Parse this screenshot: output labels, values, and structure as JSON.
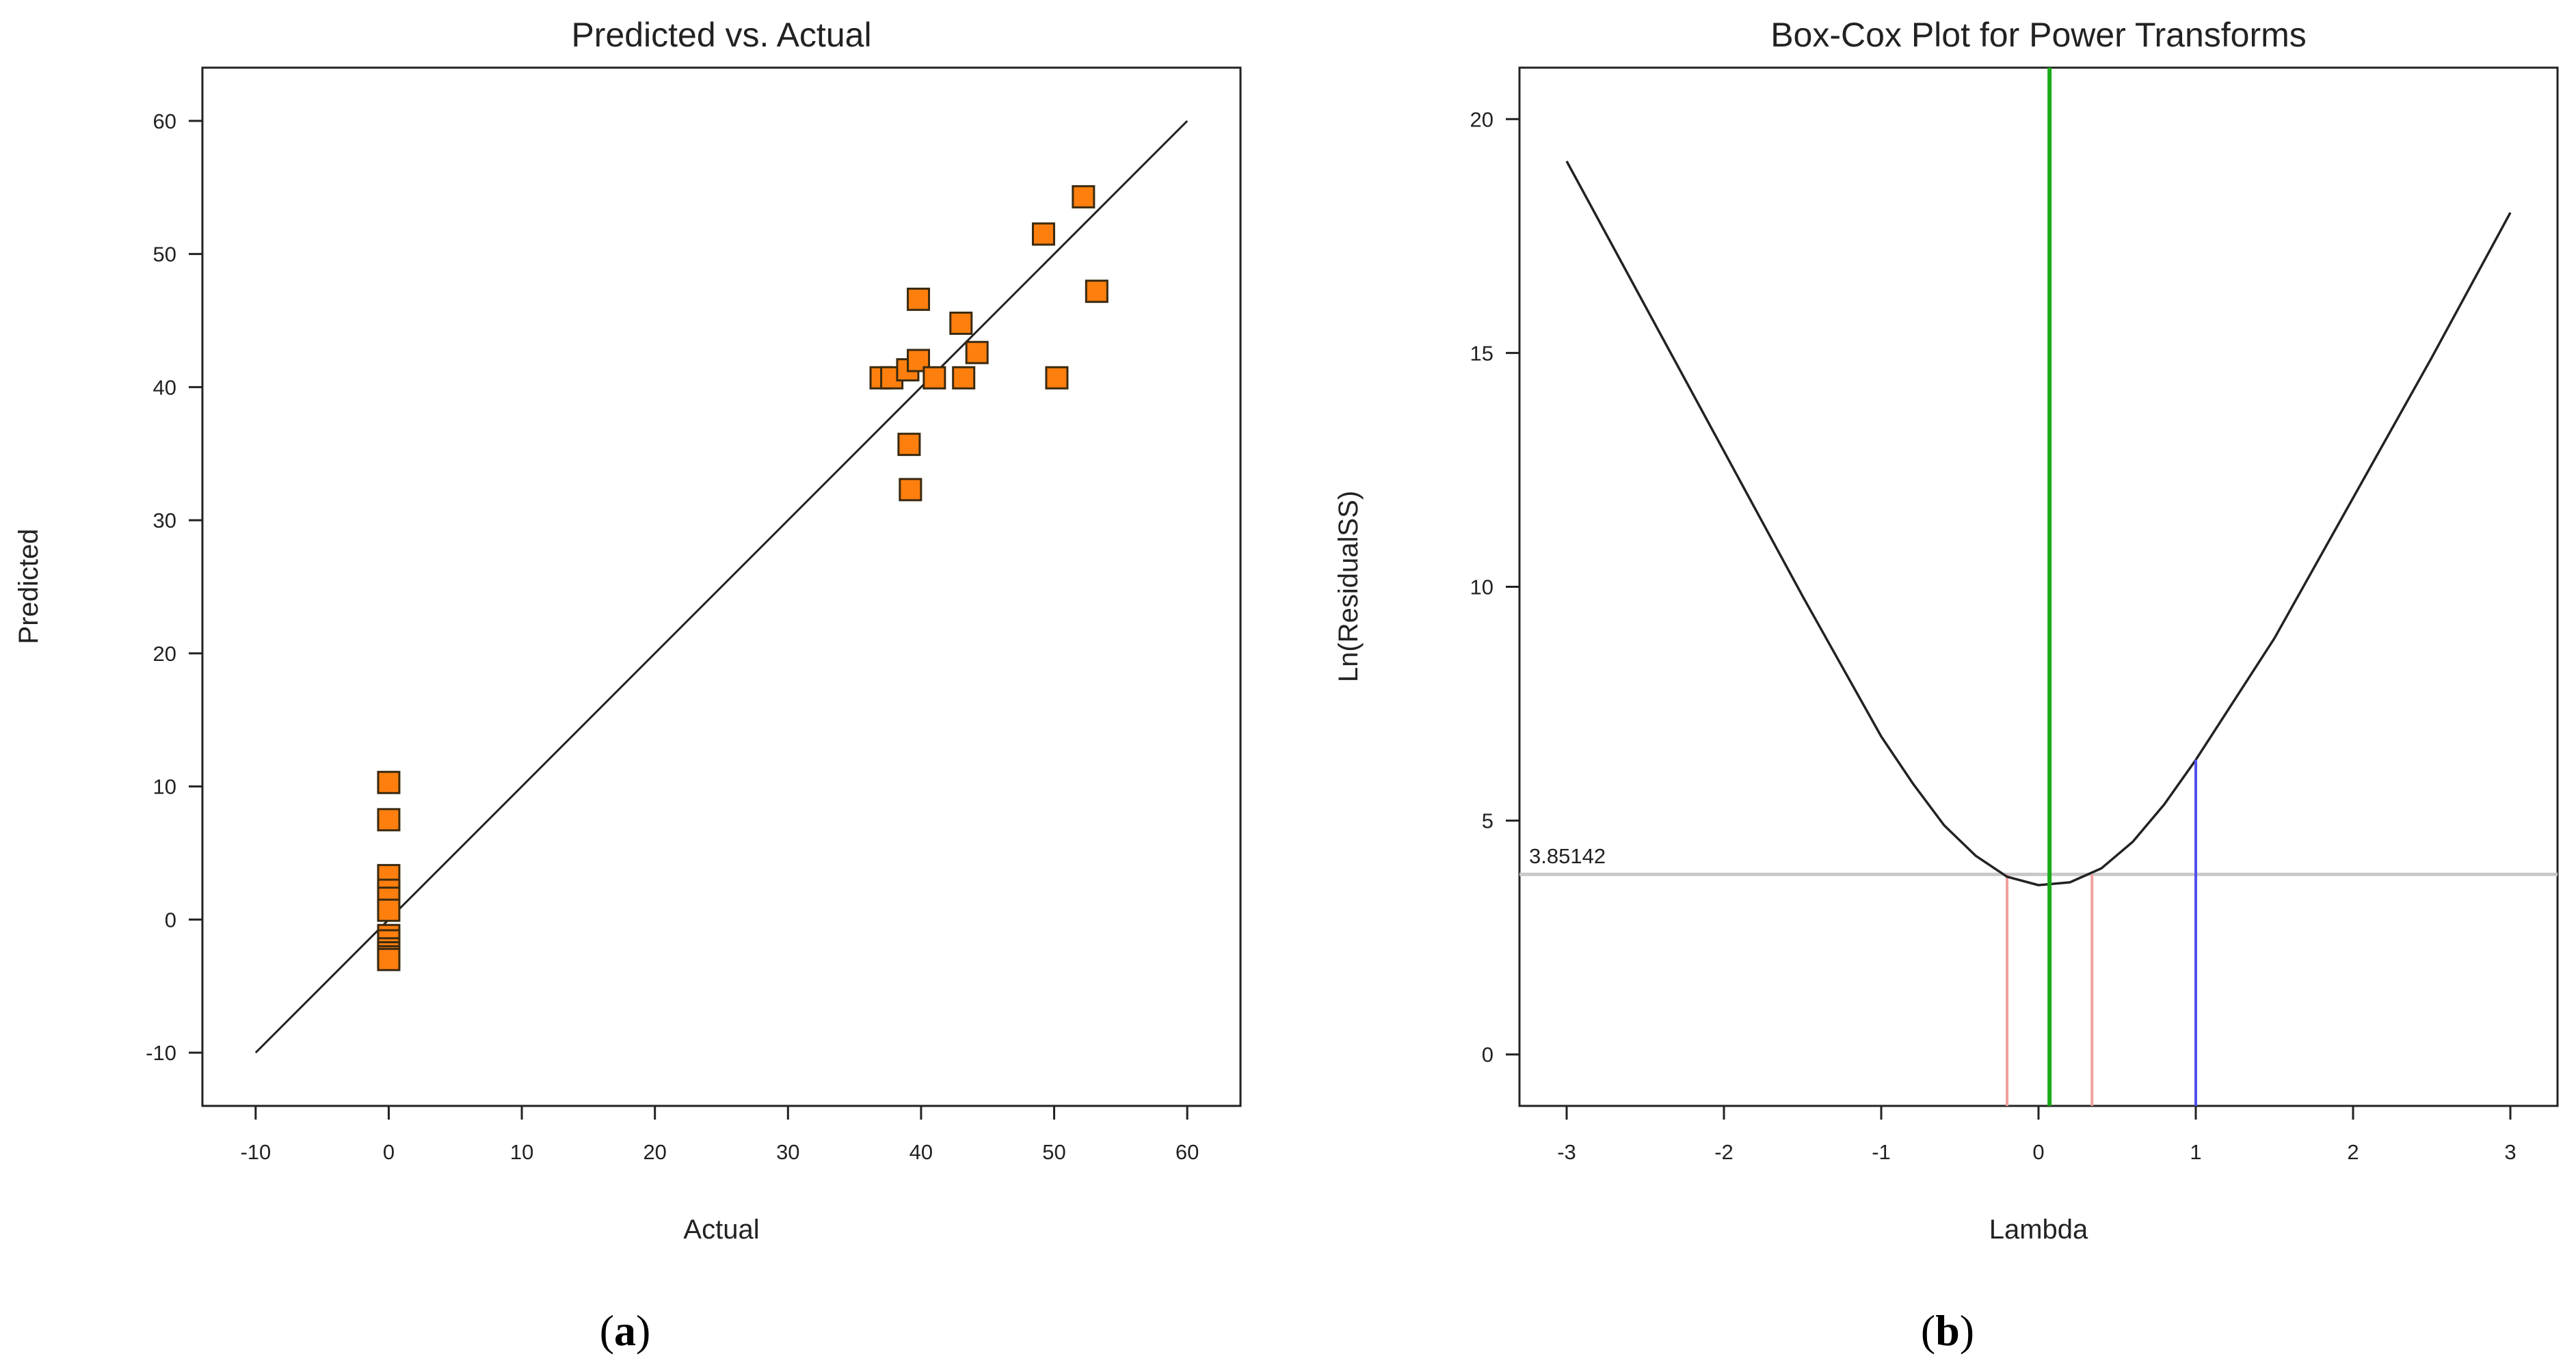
{
  "chart_data": [
    {
      "type": "scatter",
      "title": "Predicted vs. Actual",
      "xlabel": "Actual",
      "ylabel": "Predicted",
      "xlim": [
        -14,
        64
      ],
      "ylim": [
        -14,
        64
      ],
      "xticks": [
        -10,
        0,
        10,
        20,
        30,
        40,
        50,
        60
      ],
      "yticks": [
        -10,
        0,
        10,
        20,
        30,
        40,
        50,
        60
      ],
      "marker_color": "#ff7f0e",
      "marker_edge": "#3a2a10",
      "line_color": "#222222",
      "reference_line": {
        "x": [
          -10,
          60
        ],
        "y": [
          -10,
          60
        ]
      },
      "points": {
        "x": [
          0,
          0,
          0,
          0,
          0,
          0,
          0,
          0,
          0,
          0,
          0,
          0,
          37,
          37.8,
          39,
          39.2,
          39.1,
          39.8,
          39.8,
          41,
          43,
          43.2,
          44.2,
          49.2,
          50.2,
          52.2,
          53.2
        ],
        "y": [
          10.3,
          7.5,
          3.3,
          2.2,
          1.6,
          0.7,
          -1.2,
          -1.6,
          -2.2,
          -2.5,
          -2.8,
          -3.0,
          40.7,
          40.7,
          41.3,
          32.3,
          35.7,
          42.0,
          46.6,
          40.7,
          44.8,
          40.7,
          42.6,
          51.5,
          40.7,
          54.3,
          47.2
        ]
      },
      "caption": "(a)"
    },
    {
      "type": "line",
      "title": "Box-Cox Plot for Power Transforms",
      "xlabel": "Lambda",
      "ylabel": "Ln(ResidualSS)",
      "xlim": [
        -3.3,
        3.3
      ],
      "ylim": [
        -1.1,
        21.1
      ],
      "xticks": [
        -3,
        -2,
        -1,
        0,
        1,
        2,
        3
      ],
      "yticks": [
        0,
        5,
        10,
        15,
        20
      ],
      "curve": {
        "x": [
          -3.0,
          -2.5,
          -2.0,
          -1.5,
          -1.0,
          -0.8,
          -0.6,
          -0.4,
          -0.2,
          0.0,
          0.2,
          0.4,
          0.6,
          0.8,
          1.0,
          1.5,
          2.0,
          2.5,
          3.0
        ],
        "y": [
          19.1,
          16.0,
          12.9,
          9.8,
          6.8,
          5.8,
          4.9,
          4.25,
          3.8,
          3.62,
          3.68,
          3.98,
          4.55,
          5.35,
          6.3,
          8.9,
          11.9,
          14.9,
          18.0
        ],
        "color": "#222222"
      },
      "threshold": {
        "y": 3.85142,
        "label": "3.85142",
        "color": "#c8c8c8"
      },
      "best_lambda": {
        "x": 0.07,
        "color": "#1aaa1a"
      },
      "ci_lines": {
        "x": [
          -0.2,
          0.34
        ],
        "color": "#f2a0a0"
      },
      "current_lambda": {
        "x": 1.0,
        "color": "#5050ee"
      },
      "caption": "(b)"
    }
  ]
}
